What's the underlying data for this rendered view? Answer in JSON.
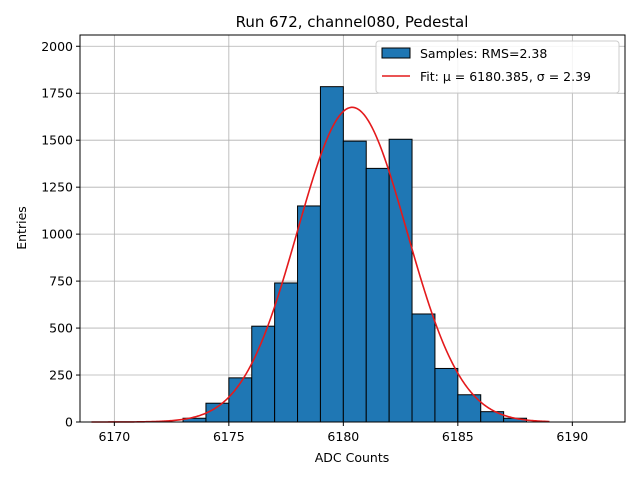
{
  "chart_data": {
    "type": "bar",
    "title": "Run 672, channel080, Pedestal",
    "xlabel": "ADC Counts",
    "ylabel": "Entries",
    "xlim": [
      6168.5,
      6192.3
    ],
    "ylim": [
      0,
      2060
    ],
    "xticks": [
      6170,
      6175,
      6180,
      6185,
      6190
    ],
    "yticks": [
      0,
      250,
      500,
      750,
      1000,
      1250,
      1500,
      1750,
      2000
    ],
    "grid": true,
    "legend_position": "top-right",
    "bin_edges": [
      6173,
      6174,
      6175,
      6176,
      6177,
      6178,
      6179,
      6180,
      6181,
      6182,
      6183,
      6184,
      6185,
      6186,
      6187,
      6188
    ],
    "values": [
      20,
      100,
      235,
      510,
      740,
      1150,
      1785,
      1495,
      1350,
      1505,
      575,
      285,
      145,
      55,
      20
    ],
    "series": [
      {
        "name": "Samples: RMS=2.38",
        "kind": "histogram",
        "color": "#1f77b4"
      },
      {
        "name": "Fit: μ = 6180.385, σ = 2.39",
        "kind": "line",
        "color": "#e41a1c"
      }
    ],
    "fit": {
      "mu": 6180.385,
      "sigma": 2.39,
      "amplitude": 1675,
      "x_range": [
        6169,
        6189
      ]
    }
  }
}
